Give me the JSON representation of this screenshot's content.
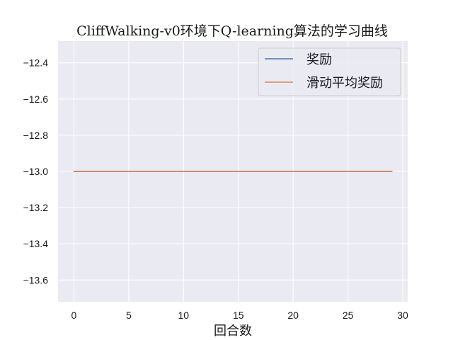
{
  "chart_data": {
    "type": "line",
    "title": "CliffWalking-v0环境下Q-learning算法的学习曲线",
    "xlabel": "回合数",
    "ylabel": "",
    "xlim": [
      -1.45,
      30.45
    ],
    "ylim": [
      -13.72,
      -12.28
    ],
    "xticks": [
      0,
      5,
      10,
      15,
      20,
      25,
      30
    ],
    "yticks": [
      -12.4,
      -12.6,
      -12.8,
      -13.0,
      -13.2,
      -13.4,
      -13.6
    ],
    "ytick_labels": [
      "−12.4",
      "−12.6",
      "−12.8",
      "−13.0",
      "−13.2",
      "−13.4",
      "−13.6"
    ],
    "grid": true,
    "legend_position": "top-right",
    "x": [
      0,
      1,
      2,
      3,
      4,
      5,
      6,
      7,
      8,
      9,
      10,
      11,
      12,
      13,
      14,
      15,
      16,
      17,
      18,
      19,
      20,
      21,
      22,
      23,
      24,
      25,
      26,
      27,
      28,
      29
    ],
    "series": [
      {
        "name": "奖励",
        "color": "#4c72b0",
        "values": [
          -13,
          -13,
          -13,
          -13,
          -13,
          -13,
          -13,
          -13,
          -13,
          -13,
          -13,
          -13,
          -13,
          -13,
          -13,
          -13,
          -13,
          -13,
          -13,
          -13,
          -13,
          -13,
          -13,
          -13,
          -13,
          -13,
          -13,
          -13,
          -13,
          -13
        ]
      },
      {
        "name": "滑动平均奖励",
        "color": "#dd8452",
        "values": [
          -13,
          -13,
          -13,
          -13,
          -13,
          -13,
          -13,
          -13,
          -13,
          -13,
          -13,
          -13,
          -13,
          -13,
          -13,
          -13,
          -13,
          -13,
          -13,
          -13,
          -13,
          -13,
          -13,
          -13,
          -13,
          -13,
          -13,
          -13,
          -13,
          -13
        ]
      }
    ],
    "colors": {
      "plot_background": "#eaeaf2",
      "grid": "#ffffff"
    }
  }
}
